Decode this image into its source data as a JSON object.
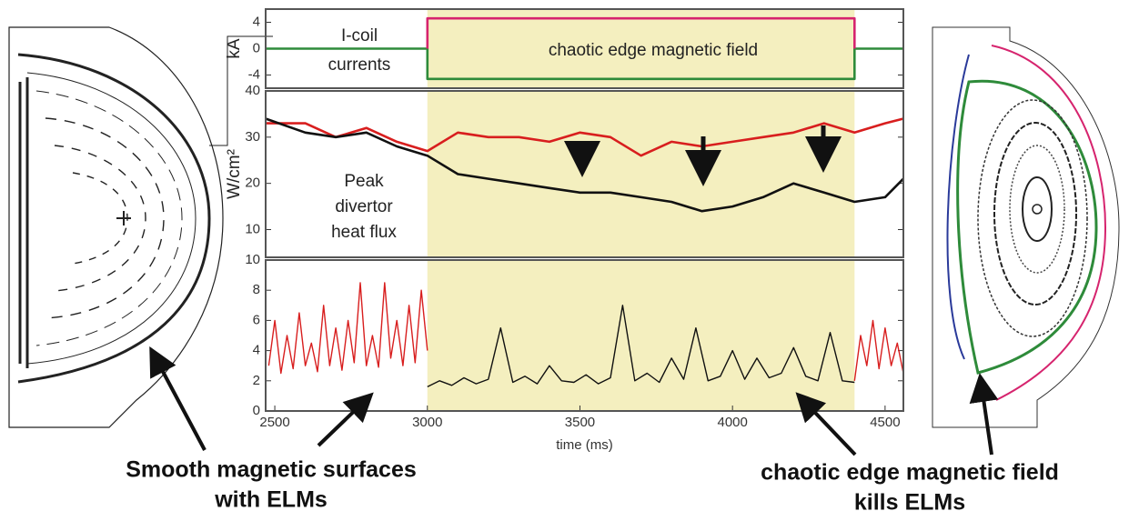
{
  "chart_data": [
    {
      "type": "line",
      "ylabel": "kA",
      "annotations": [
        "I-coil",
        "currents",
        "chaotic edge magnetic field"
      ],
      "ylim": [
        -6,
        6
      ],
      "yticks": [
        4,
        0,
        -4
      ],
      "xlim": [
        2470,
        4560
      ],
      "series": [
        {
          "color": "#2e8b3a",
          "x": [
            2470,
            3000,
            3000,
            4400,
            4400,
            4560
          ],
          "values": [
            0,
            0,
            -4.6,
            -4.6,
            0,
            0
          ]
        },
        {
          "color": "#d6246e",
          "x": [
            3000,
            3000,
            4400,
            4400
          ],
          "values": [
            0,
            4.6,
            4.6,
            0
          ]
        }
      ]
    },
    {
      "type": "line",
      "ylabel": "W/cm²",
      "annotations": [
        "Peak",
        "divertor",
        "heat flux"
      ],
      "ylim": [
        4,
        40
      ],
      "yticks": [
        10,
        20,
        30,
        40
      ],
      "xlim": [
        2470,
        4560
      ],
      "series": [
        {
          "color": "#d81e1e",
          "x": [
            2470,
            2600,
            2700,
            2800,
            2900,
            3000,
            3100,
            3200,
            3300,
            3400,
            3500,
            3600,
            3700,
            3800,
            3900,
            4000,
            4100,
            4200,
            4300,
            4400,
            4500,
            4560
          ],
          "values": [
            33,
            33,
            30,
            32,
            29,
            27,
            31,
            30,
            30,
            29,
            31,
            30,
            26,
            29,
            28,
            29,
            30,
            31,
            33,
            31,
            33,
            34
          ]
        },
        {
          "color": "#111111",
          "x": [
            2470,
            2600,
            2700,
            2800,
            2900,
            3000,
            3100,
            3200,
            3300,
            3400,
            3500,
            3600,
            3700,
            3800,
            3900,
            4000,
            4100,
            4200,
            4300,
            4400,
            4500,
            4560
          ],
          "values": [
            34,
            31,
            30,
            31,
            28,
            26,
            22,
            21,
            20,
            19,
            18,
            18,
            17,
            16,
            14,
            15,
            17,
            20,
            18,
            16,
            17,
            21
          ]
        }
      ]
    },
    {
      "type": "line",
      "xlabel": "time (ms)",
      "ylim": [
        0,
        10
      ],
      "yticks": [
        0,
        2,
        4,
        6,
        8,
        10
      ],
      "xlim": [
        2470,
        4560
      ],
      "xticks": [
        2500,
        3000,
        3500,
        4000,
        4500
      ],
      "series": [
        {
          "color": "#d81e1e",
          "x": [
            2480,
            2500,
            2520,
            2540,
            2560,
            2580,
            2600,
            2620,
            2640,
            2660,
            2680,
            2700,
            2720,
            2740,
            2760,
            2780,
            2800,
            2820,
            2840,
            2860,
            2880,
            2900,
            2920,
            2940,
            2960,
            2980,
            3000
          ],
          "values": [
            3,
            6,
            2.5,
            5,
            2.8,
            6.5,
            3,
            4.5,
            2.6,
            7,
            3,
            5.5,
            2.7,
            6,
            3.2,
            8.5,
            3,
            5,
            2.9,
            8.5,
            3.5,
            6,
            3,
            7,
            3.2,
            8,
            4
          ]
        },
        {
          "color": "#111111",
          "x": [
            3000,
            3040,
            3080,
            3120,
            3160,
            3200,
            3240,
            3280,
            3320,
            3360,
            3400,
            3440,
            3480,
            3520,
            3560,
            3600,
            3640,
            3680,
            3720,
            3760,
            3800,
            3840,
            3880,
            3920,
            3960,
            4000,
            4040,
            4080,
            4120,
            4160,
            4200,
            4240,
            4280,
            4320,
            4360,
            4400
          ],
          "values": [
            1.6,
            2,
            1.7,
            2.2,
            1.8,
            2.1,
            5.5,
            1.9,
            2.3,
            1.8,
            3,
            2,
            1.9,
            2.4,
            1.8,
            2.2,
            7,
            2,
            2.5,
            1.9,
            3.5,
            2.1,
            5.5,
            2,
            2.3,
            4,
            2.1,
            3.5,
            2.2,
            2.5,
            4.2,
            2.3,
            2,
            5.2,
            2,
            1.9
          ]
        },
        {
          "color": "#d81e1e",
          "x": [
            4400,
            4420,
            4440,
            4460,
            4480,
            4500,
            4520,
            4540,
            4560
          ],
          "values": [
            2,
            5,
            3,
            6,
            2.8,
            5.5,
            3,
            4.5,
            2.5
          ]
        }
      ]
    }
  ],
  "shaded_range": [
    3000,
    4400
  ],
  "shade_color": "#f4efbf",
  "captions": {
    "left": [
      "Smooth magnetic surfaces",
      "with ELMs"
    ],
    "right": [
      "chaotic edge magnetic field",
      "kills ELMs"
    ]
  }
}
